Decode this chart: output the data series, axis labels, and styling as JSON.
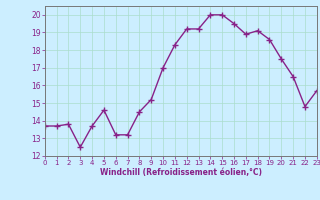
{
  "x": [
    0,
    1,
    2,
    3,
    4,
    5,
    6,
    7,
    8,
    9,
    10,
    11,
    12,
    13,
    14,
    15,
    16,
    17,
    18,
    19,
    20,
    21,
    22,
    23
  ],
  "y": [
    13.7,
    13.7,
    13.8,
    12.5,
    13.7,
    14.6,
    13.2,
    13.2,
    14.5,
    15.2,
    17.0,
    18.3,
    19.2,
    19.2,
    20.0,
    20.0,
    19.5,
    18.9,
    19.1,
    18.6,
    17.5,
    16.5,
    14.8,
    15.7
  ],
  "line_color": "#882288",
  "marker": "+",
  "markersize": 4,
  "markeredgewidth": 1.0,
  "linewidth": 1.0,
  "linestyle": "-",
  "xlabel": "Windchill (Refroidissement éolien,°C)",
  "xlim": [
    0,
    23
  ],
  "ylim": [
    12,
    20.5
  ],
  "yticks": [
    12,
    13,
    14,
    15,
    16,
    17,
    18,
    19,
    20
  ],
  "xticks": [
    0,
    1,
    2,
    3,
    4,
    5,
    6,
    7,
    8,
    9,
    10,
    11,
    12,
    13,
    14,
    15,
    16,
    17,
    18,
    19,
    20,
    21,
    22,
    23
  ],
  "background_color": "#cceeff",
  "grid_color": "#aaddcc",
  "label_color": "#882288",
  "tick_color": "#882288",
  "spine_color": "#777777"
}
